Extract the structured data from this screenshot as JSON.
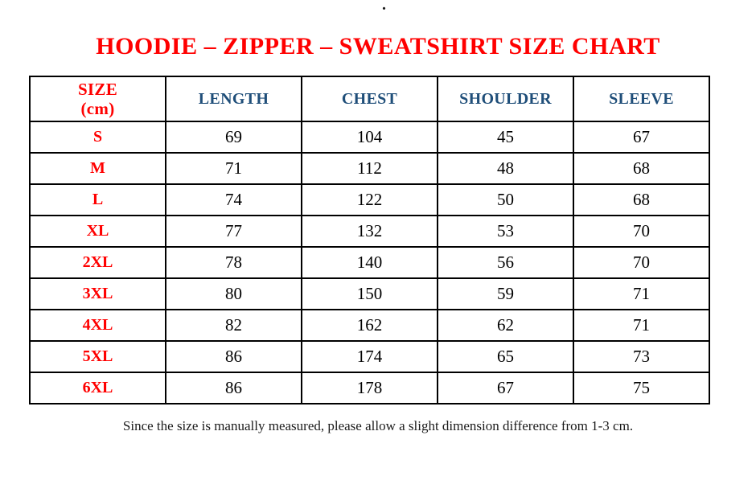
{
  "colors": {
    "accent_red": "#FF0000",
    "header_blue": "#1F4E79",
    "text_black": "#000000",
    "border_black": "#000000"
  },
  "stray_mark": ".",
  "chart_data": {
    "type": "table",
    "title": "HOODIE – ZIPPER – SWEATSHIRT SIZE CHART",
    "headers": {
      "size": "SIZE",
      "size_unit": "(cm)",
      "length": "LENGTH",
      "chest": "CHEST",
      "shoulder": "SHOULDER",
      "sleeve": "SLEEVE"
    },
    "rows": [
      {
        "size": "S",
        "length": "69",
        "chest": "104",
        "shoulder": "45",
        "sleeve": "67"
      },
      {
        "size": "M",
        "length": "71",
        "chest": "112",
        "shoulder": "48",
        "sleeve": "68"
      },
      {
        "size": "L",
        "length": "74",
        "chest": "122",
        "shoulder": "50",
        "sleeve": "68"
      },
      {
        "size": "XL",
        "length": "77",
        "chest": "132",
        "shoulder": "53",
        "sleeve": "70"
      },
      {
        "size": "2XL",
        "length": "78",
        "chest": "140",
        "shoulder": "56",
        "sleeve": "70"
      },
      {
        "size": "3XL",
        "length": "80",
        "chest": "150",
        "shoulder": "59",
        "sleeve": "71"
      },
      {
        "size": "4XL",
        "length": "82",
        "chest": "162",
        "shoulder": "62",
        "sleeve": "71"
      },
      {
        "size": "5XL",
        "length": "86",
        "chest": "174",
        "shoulder": "65",
        "sleeve": "73"
      },
      {
        "size": "6XL",
        "length": "86",
        "chest": "178",
        "shoulder": "67",
        "sleeve": "75"
      }
    ],
    "footnote": "Since the size is manually measured, please allow a slight dimension difference from 1-3 cm."
  }
}
